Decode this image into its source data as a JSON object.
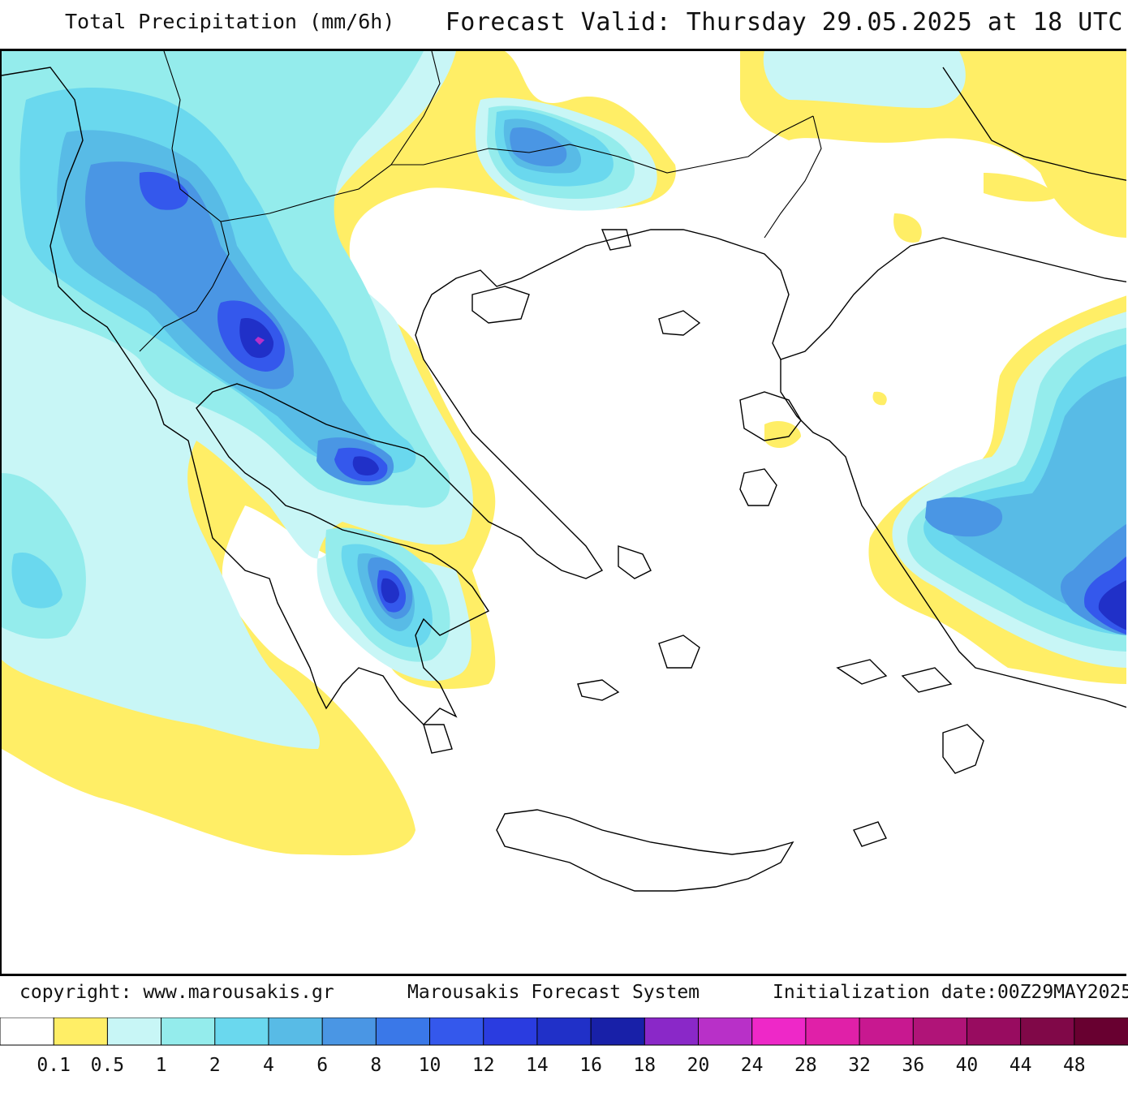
{
  "header": {
    "title": "Total Precipitation (mm/6h)",
    "valid": "Forecast Valid:  Thursday 29.05.2025 at 18 UTC"
  },
  "footer": {
    "copyright": "copyright: www.marousakis.gr",
    "system": "Marousakis Forecast System",
    "init": "Initialization date:00Z29MAY2025"
  },
  "legend": {
    "colors": [
      "#ffffff",
      "#ffee66",
      "#c8f6f6",
      "#94ecec",
      "#6ad8ee",
      "#58bbe6",
      "#4a96e4",
      "#3a78e8",
      "#3458ec",
      "#2a3ce0",
      "#2030c8",
      "#1820a8",
      "#8a28c8",
      "#b830c8",
      "#ee28c8",
      "#e020a8",
      "#c81890",
      "#b01478",
      "#980c60",
      "#800848",
      "#680030"
    ],
    "labels": [
      "0.1",
      "0.5",
      "1",
      "2",
      "4",
      "6",
      "8",
      "10",
      "12",
      "14",
      "16",
      "18",
      "20",
      "24",
      "28",
      "32",
      "36",
      "40",
      "44",
      "48"
    ]
  }
}
